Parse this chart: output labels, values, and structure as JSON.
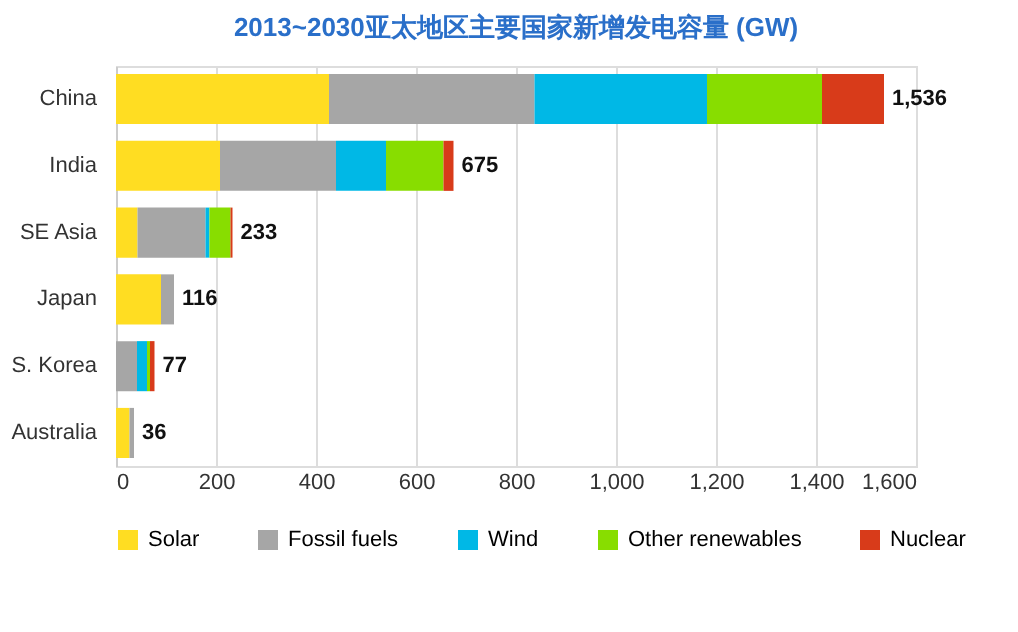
{
  "chart_data": {
    "type": "bar",
    "orientation": "horizontal",
    "stacked": true,
    "title": "2013~2030亚太地区主要国家新增发电容量 (GW)",
    "categories": [
      "China",
      "India",
      "SE Asia",
      "Japan",
      "S. Korea",
      "Australia"
    ],
    "series": [
      {
        "name": "Solar",
        "color": "#ffdd22",
        "values": [
          426,
          208,
          43,
          90,
          0,
          27
        ]
      },
      {
        "name": "Fossil fuels",
        "color": "#a6a6a6",
        "values": [
          411,
          232,
          136,
          26,
          42,
          9
        ]
      },
      {
        "name": "Wind",
        "color": "#00b8e6",
        "values": [
          345,
          100,
          8,
          0,
          20,
          0
        ]
      },
      {
        "name": "Other renewables",
        "color": "#88dd00",
        "values": [
          230,
          115,
          42,
          0,
          6,
          0
        ]
      },
      {
        "name": "Nuclear",
        "color": "#d83b1a",
        "values": [
          124,
          20,
          4,
          0,
          9,
          0
        ]
      }
    ],
    "totals": [
      "1,536",
      "675",
      "233",
      "116",
      "77",
      "36"
    ],
    "xlim": [
      0,
      1600
    ],
    "xticks": [
      0,
      {
        "value": 200,
        "label": "200"
      },
      {
        "value": 400,
        "label": "400"
      },
      {
        "value": 600,
        "label": "600"
      },
      {
        "value": 800,
        "label": "800"
      },
      {
        "value": 1000,
        "label": "1,000"
      },
      {
        "value": 1200,
        "label": "1,200"
      },
      {
        "value": 1400,
        "label": "1,400"
      },
      {
        "value": 1600,
        "label": "1,600"
      }
    ],
    "grid": "x",
    "legend": "bottom"
  }
}
